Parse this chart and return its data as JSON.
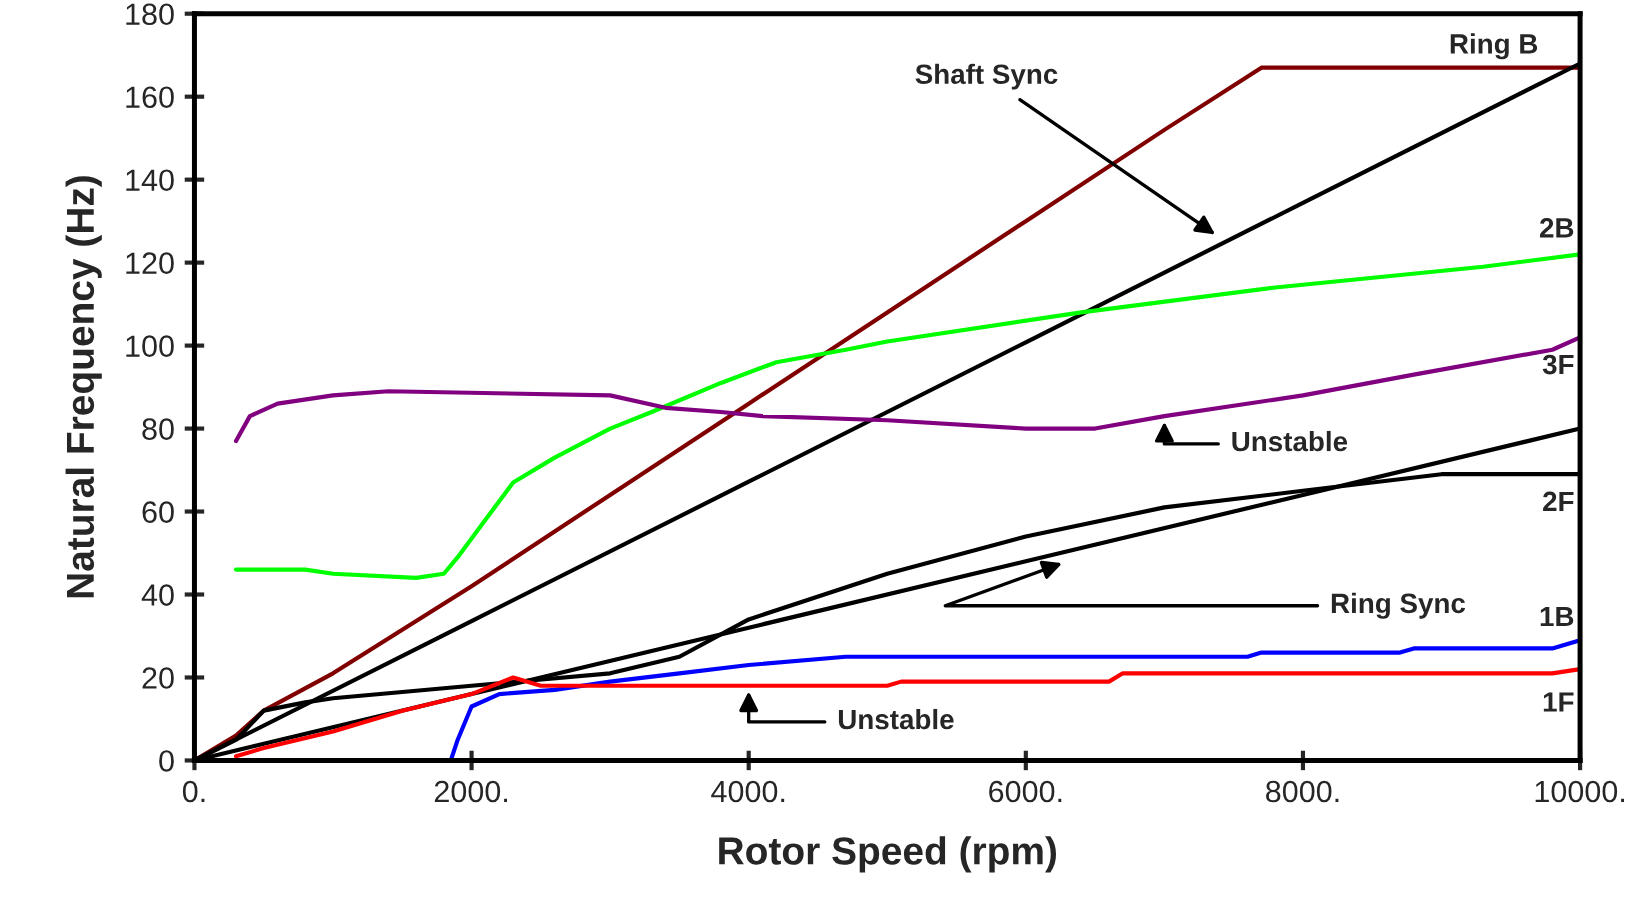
{
  "chart_data": {
    "type": "line",
    "xlabel": "Rotor Speed (rpm)",
    "ylabel": "Natural Frequency (Hz)",
    "xlim": [
      0,
      10000
    ],
    "ylim": [
      0,
      180
    ],
    "xticks": [
      {
        "value": 0,
        "label": "0."
      },
      {
        "value": 2000,
        "label": "2000."
      },
      {
        "value": 4000,
        "label": "4000."
      },
      {
        "value": 6000,
        "label": "6000."
      },
      {
        "value": 8000,
        "label": "8000."
      },
      {
        "value": 10000,
        "label": "10000."
      }
    ],
    "yticks": [
      0,
      20,
      40,
      60,
      80,
      100,
      120,
      140,
      160,
      180
    ],
    "grid": false,
    "legend": false,
    "marker": "none",
    "line_style": "solid",
    "series": [
      {
        "name": "Ring B",
        "color": "#800000",
        "x": [
          0,
          300,
          500,
          1000,
          2000,
          3000,
          4000,
          5000,
          6000,
          7000,
          7700,
          10000
        ],
        "values": [
          0,
          6,
          12,
          21,
          42,
          64,
          86,
          108,
          130,
          152,
          167,
          167
        ]
      },
      {
        "color": "#000000",
        "x": [
          0,
          2000,
          4000,
          6000,
          8000,
          10000
        ],
        "values": [
          0,
          33.6,
          67.2,
          100.8,
          134.4,
          168
        ]
      },
      {
        "name": "2B",
        "color": "#00ff00",
        "x": [
          300,
          800,
          1000,
          1600,
          1800,
          1900,
          2100,
          2300,
          2600,
          3000,
          3300,
          3800,
          4200,
          4700,
          5000,
          6400,
          7800,
          9300,
          10000
        ],
        "values": [
          46,
          46,
          45,
          44,
          45,
          49,
          58,
          67,
          73,
          80,
          84,
          91,
          96,
          99,
          101,
          108,
          114,
          119,
          122
        ]
      },
      {
        "name": "3F",
        "color": "#800080",
        "x": [
          300,
          400,
          600,
          1000,
          1400,
          3000,
          3400,
          3800,
          4100,
          5000,
          6000,
          6500,
          7000,
          8000,
          8800,
          9800,
          10000
        ],
        "values": [
          77,
          83,
          86,
          88,
          89,
          88,
          85,
          84,
          83,
          82,
          80,
          80,
          83,
          88,
          93,
          99,
          102
        ]
      },
      {
        "color": "#000000",
        "x": [
          0,
          2000,
          4000,
          6000,
          8000,
          10000
        ],
        "values": [
          0,
          16,
          32,
          48,
          64,
          80
        ]
      },
      {
        "name": "2F",
        "color": "#000000",
        "x": [
          0,
          300,
          500,
          800,
          1000,
          2000,
          3000,
          3500,
          4000,
          5000,
          6000,
          7000,
          8000,
          9000,
          10000
        ],
        "values": [
          0,
          5,
          12,
          14,
          15,
          18,
          21,
          25,
          34,
          45,
          54,
          61,
          65,
          69,
          69
        ]
      },
      {
        "name": "1B",
        "color": "#0000ff",
        "x": [
          0,
          1850,
          1900,
          2000,
          2200,
          2600,
          3000,
          3500,
          4000,
          4700,
          7600,
          7700,
          8700,
          8800,
          9800,
          10000
        ],
        "values": [
          0,
          0,
          5,
          13,
          16,
          17,
          19,
          21,
          23,
          25,
          25,
          26,
          26,
          27,
          27,
          29
        ]
      },
      {
        "name": "1F",
        "color": "#ff0000",
        "x": [
          300,
          500,
          1000,
          1500,
          2000,
          2300,
          2500,
          5000,
          5100,
          6600,
          6700,
          9800,
          10000
        ],
        "values": [
          1,
          3,
          7,
          12,
          16,
          20,
          18,
          18,
          19,
          19,
          21,
          21,
          22
        ]
      }
    ],
    "annotations": [
      {
        "text": "Shaft Sync",
        "x": 7400,
        "y": 126
      },
      {
        "text": "Ring Sync",
        "x": 6300,
        "y": 48
      },
      {
        "text": "Unstable",
        "x": 7000,
        "y": 83
      },
      {
        "text": "Unstable",
        "x": 4000,
        "y": 18
      }
    ]
  }
}
